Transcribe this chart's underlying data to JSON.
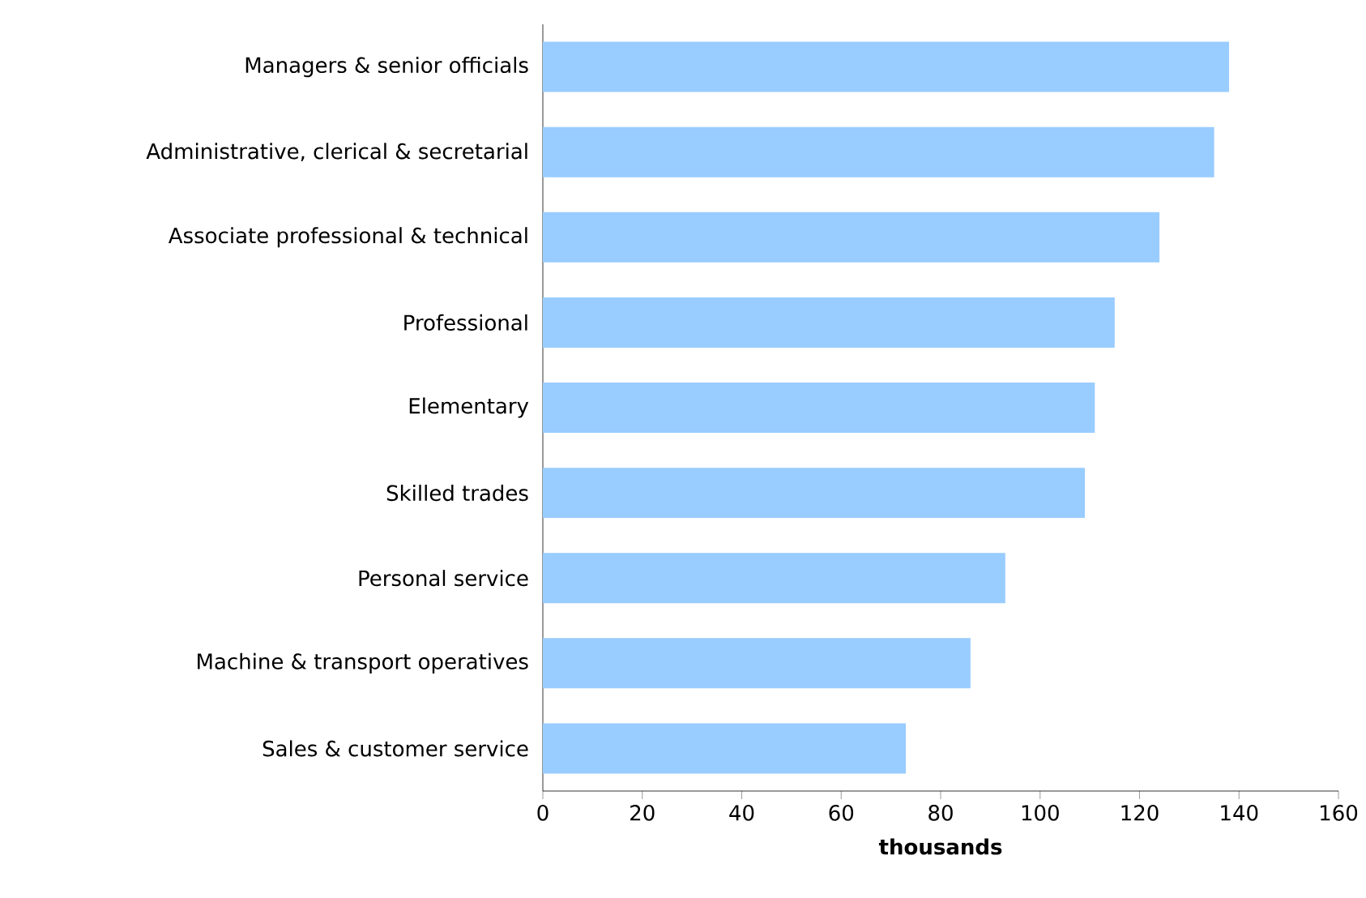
{
  "chart_data": {
    "type": "bar",
    "orientation": "horizontal",
    "xlabel": "thousands",
    "categories": [
      "Managers & senior officials",
      "Administrative, clerical & secretarial",
      "Associate professional & technical",
      "Professional",
      "Elementary",
      "Skilled trades",
      "Personal service",
      "Machine & transport operatives",
      "Sales & customer service"
    ],
    "values": [
      138,
      135,
      124,
      115,
      111,
      109,
      93,
      86,
      73
    ],
    "color": "#99ccff",
    "xlim": [
      0,
      160
    ],
    "xticks": [
      0,
      20,
      40,
      60,
      80,
      100,
      120,
      140,
      160
    ]
  }
}
